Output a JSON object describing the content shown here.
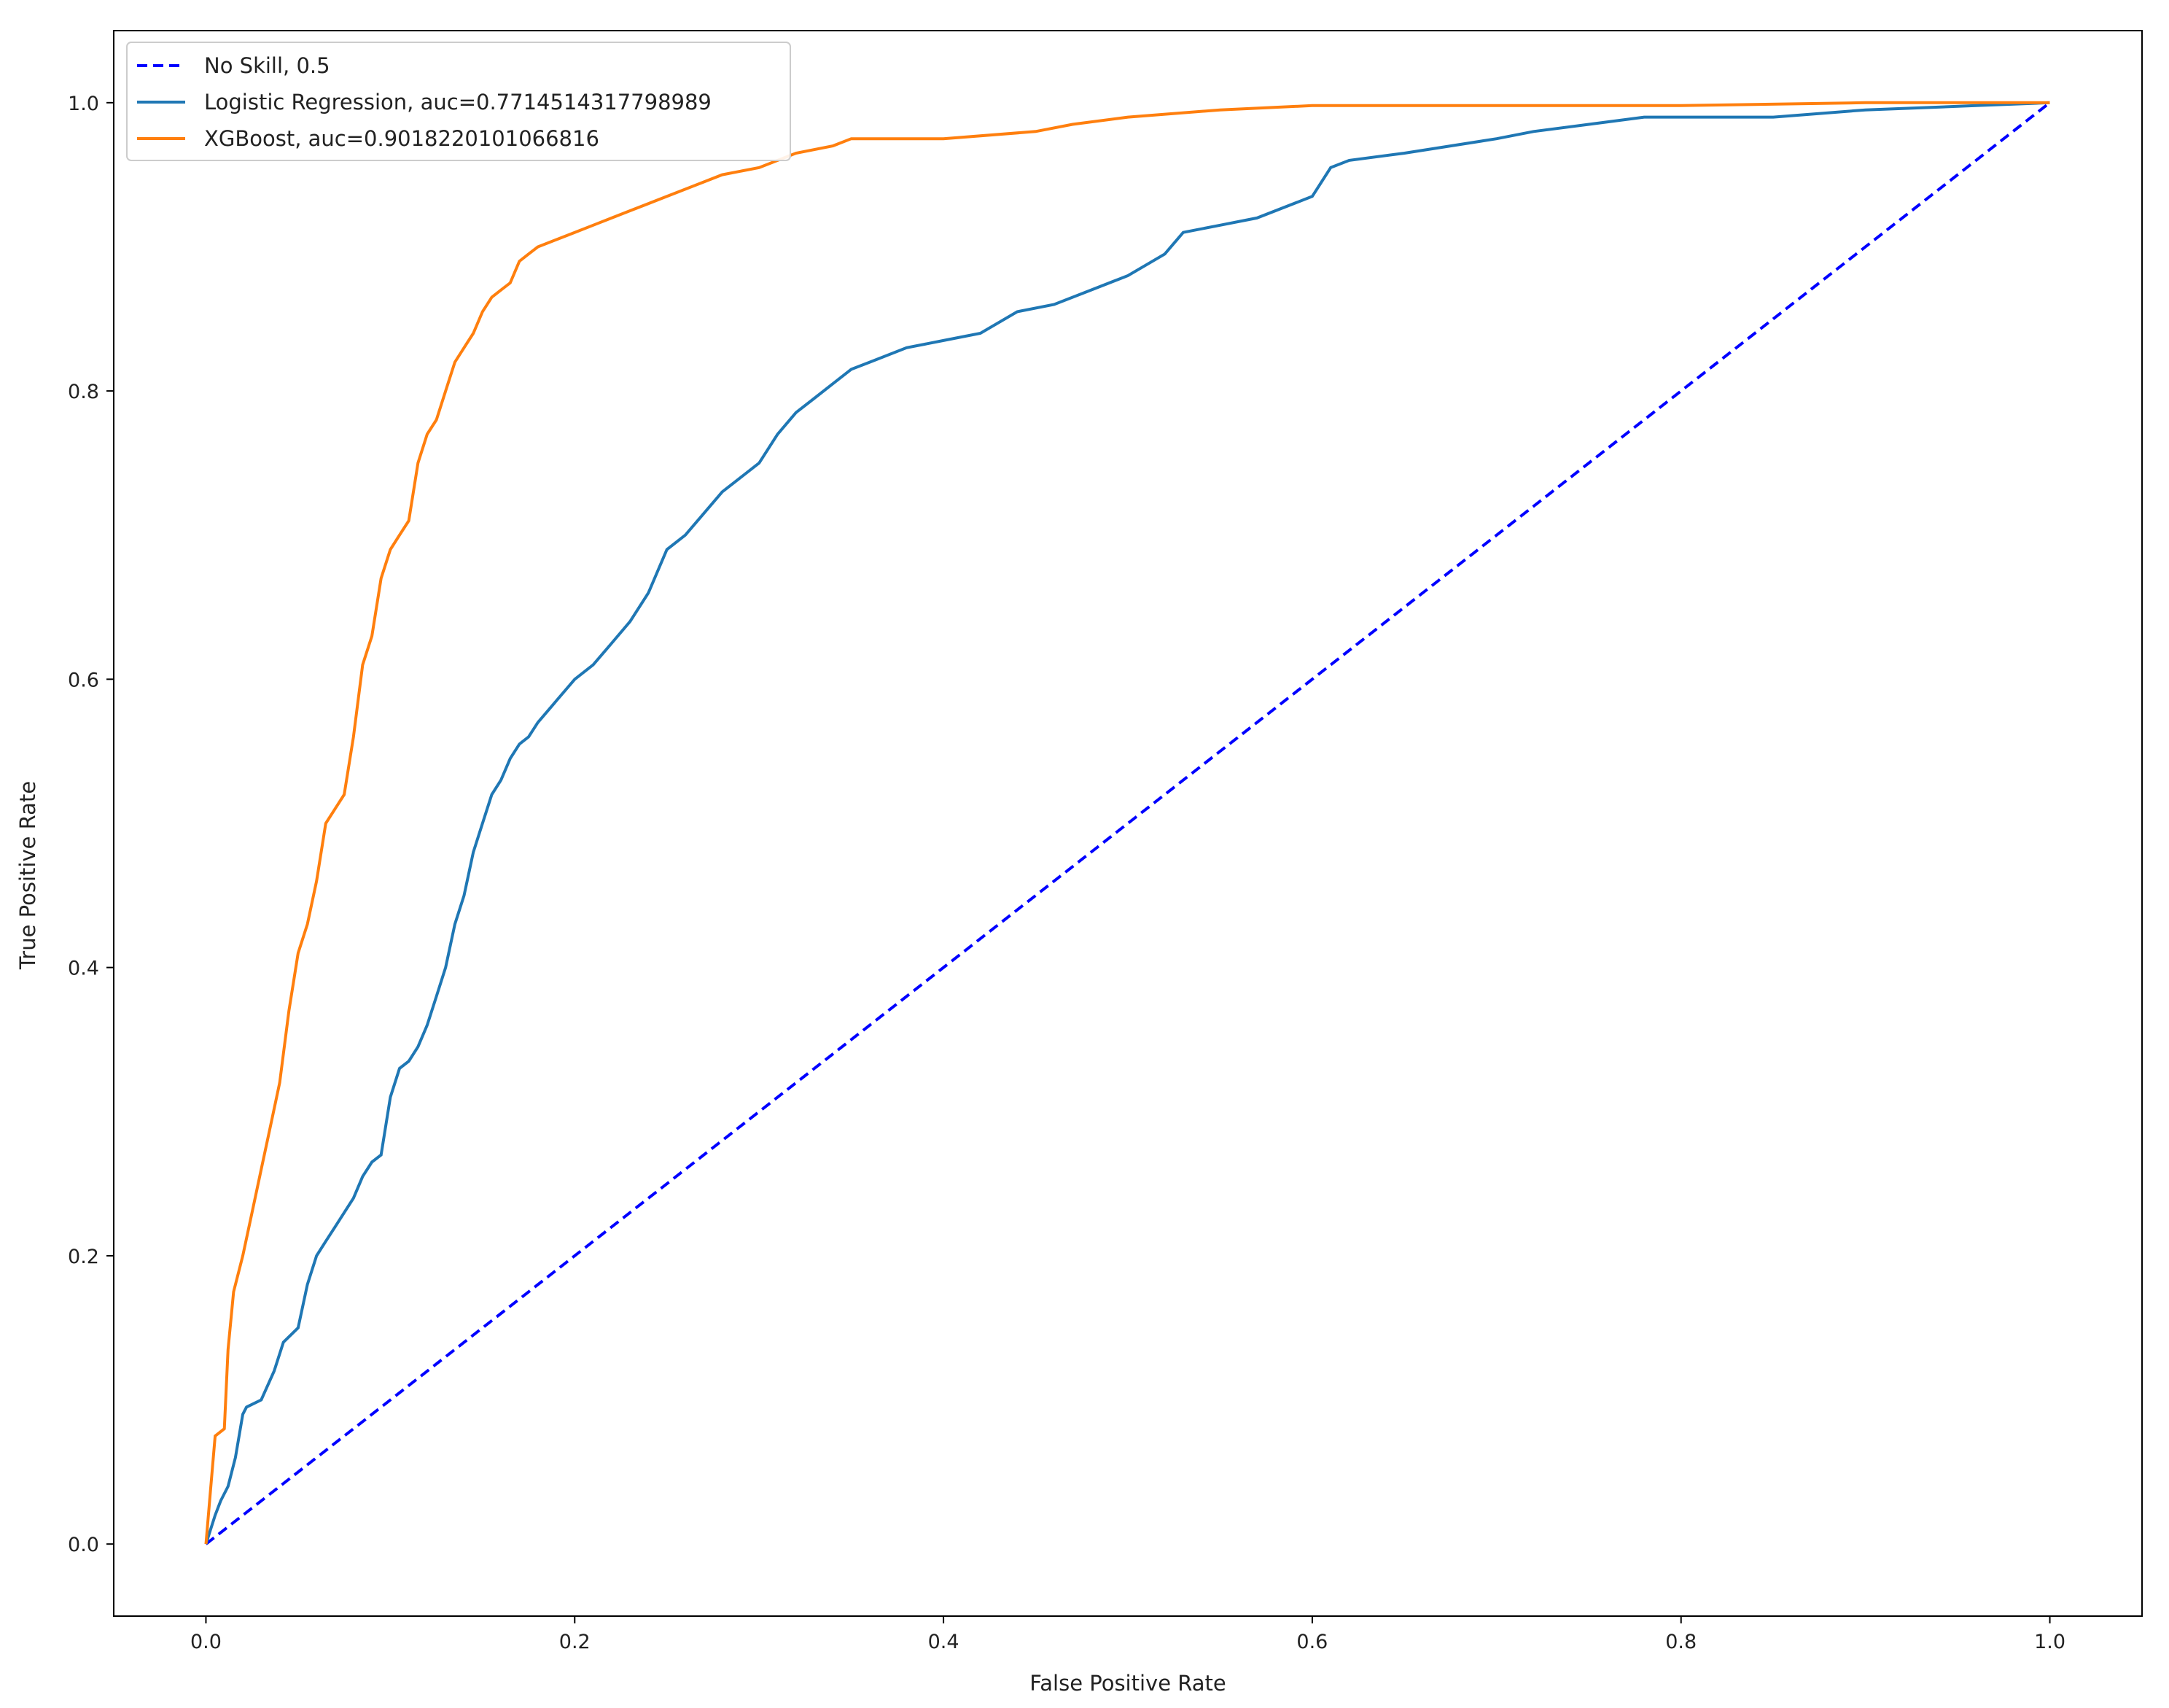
{
  "chart_data": {
    "type": "line",
    "title": "",
    "xlabel": "False Positive Rate",
    "ylabel": "True Positive Rate",
    "xlim": [
      -0.05,
      1.05
    ],
    "ylim": [
      -0.05,
      1.05
    ],
    "xticks": [
      0.0,
      0.2,
      0.4,
      0.6,
      0.8,
      1.0
    ],
    "yticks": [
      0.0,
      0.2,
      0.4,
      0.6,
      0.8,
      1.0
    ],
    "xtick_labels": [
      "0.0",
      "0.2",
      "0.4",
      "0.6",
      "0.8",
      "1.0"
    ],
    "ytick_labels": [
      "0.0",
      "0.2",
      "0.4",
      "0.6",
      "0.8",
      "1.0"
    ],
    "grid": false,
    "legend_position": "top-left",
    "series": [
      {
        "name": "No Skill, 0.5",
        "color": "#0000ff",
        "style": "dashed",
        "x": [
          0.0,
          1.0
        ],
        "y": [
          0.0,
          1.0
        ]
      },
      {
        "name": "Logistic Regression, auc=0.7714514317798989",
        "color": "#1f77b4",
        "style": "solid",
        "x": [
          0.0,
          0.005,
          0.008,
          0.012,
          0.016,
          0.02,
          0.022,
          0.03,
          0.037,
          0.042,
          0.05,
          0.055,
          0.06,
          0.065,
          0.07,
          0.08,
          0.085,
          0.09,
          0.095,
          0.1,
          0.105,
          0.11,
          0.115,
          0.12,
          0.125,
          0.13,
          0.135,
          0.14,
          0.145,
          0.15,
          0.155,
          0.16,
          0.165,
          0.17,
          0.175,
          0.18,
          0.19,
          0.2,
          0.21,
          0.22,
          0.23,
          0.24,
          0.25,
          0.26,
          0.27,
          0.28,
          0.29,
          0.3,
          0.31,
          0.32,
          0.33,
          0.34,
          0.35,
          0.36,
          0.38,
          0.4,
          0.42,
          0.44,
          0.46,
          0.48,
          0.5,
          0.52,
          0.53,
          0.55,
          0.57,
          0.6,
          0.61,
          0.62,
          0.65,
          0.7,
          0.72,
          0.75,
          0.78,
          0.85,
          0.9,
          0.96,
          1.0
        ],
        "y": [
          0.0,
          0.02,
          0.03,
          0.04,
          0.06,
          0.09,
          0.095,
          0.1,
          0.12,
          0.14,
          0.15,
          0.18,
          0.2,
          0.21,
          0.22,
          0.24,
          0.255,
          0.265,
          0.27,
          0.31,
          0.33,
          0.335,
          0.345,
          0.36,
          0.38,
          0.4,
          0.43,
          0.45,
          0.48,
          0.5,
          0.52,
          0.53,
          0.545,
          0.555,
          0.56,
          0.57,
          0.585,
          0.6,
          0.61,
          0.625,
          0.64,
          0.66,
          0.69,
          0.7,
          0.715,
          0.73,
          0.74,
          0.75,
          0.77,
          0.785,
          0.795,
          0.805,
          0.815,
          0.82,
          0.83,
          0.835,
          0.84,
          0.855,
          0.86,
          0.87,
          0.88,
          0.895,
          0.91,
          0.915,
          0.92,
          0.935,
          0.955,
          0.96,
          0.965,
          0.975,
          0.98,
          0.985,
          0.99,
          0.99,
          0.995,
          0.998,
          1.0
        ]
      },
      {
        "name": "XGBoost, auc=0.9018220101066816",
        "color": "#ff7f0e",
        "style": "solid",
        "x": [
          0.0,
          0.002,
          0.005,
          0.01,
          0.012,
          0.015,
          0.02,
          0.025,
          0.03,
          0.035,
          0.04,
          0.045,
          0.05,
          0.055,
          0.06,
          0.065,
          0.07,
          0.075,
          0.08,
          0.085,
          0.09,
          0.095,
          0.1,
          0.105,
          0.11,
          0.115,
          0.12,
          0.125,
          0.13,
          0.135,
          0.14,
          0.145,
          0.15,
          0.155,
          0.16,
          0.165,
          0.17,
          0.175,
          0.18,
          0.19,
          0.2,
          0.21,
          0.22,
          0.23,
          0.25,
          0.27,
          0.28,
          0.3,
          0.32,
          0.34,
          0.35,
          0.37,
          0.4,
          0.45,
          0.47,
          0.5,
          0.55,
          0.6,
          0.7,
          0.8,
          0.9,
          1.0
        ],
        "y": [
          0.0,
          0.03,
          0.075,
          0.08,
          0.135,
          0.175,
          0.2,
          0.23,
          0.26,
          0.29,
          0.32,
          0.37,
          0.41,
          0.43,
          0.46,
          0.5,
          0.51,
          0.52,
          0.56,
          0.61,
          0.63,
          0.67,
          0.69,
          0.7,
          0.71,
          0.75,
          0.77,
          0.78,
          0.8,
          0.82,
          0.83,
          0.84,
          0.855,
          0.865,
          0.87,
          0.875,
          0.89,
          0.895,
          0.9,
          0.905,
          0.91,
          0.915,
          0.92,
          0.925,
          0.935,
          0.945,
          0.95,
          0.955,
          0.965,
          0.97,
          0.975,
          0.975,
          0.975,
          0.98,
          0.985,
          0.99,
          0.995,
          0.998,
          0.998,
          0.998,
          1.0,
          1.0
        ]
      }
    ]
  }
}
